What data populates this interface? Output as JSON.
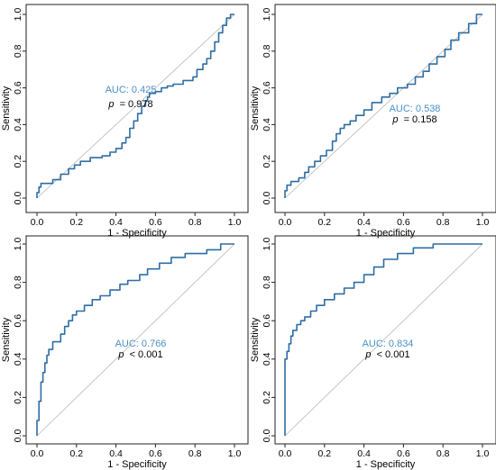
{
  "colors": {
    "roc": "#2e6da4",
    "auc": "#4a90c8",
    "diagonal": "#b8b8b8",
    "frame": "#222222"
  },
  "chart_data": [
    {
      "type": "line",
      "xlabel": "1 - Specificity",
      "ylabel": "Sensitivity",
      "xlim": [
        0,
        1
      ],
      "ylim": [
        0,
        1
      ],
      "xticks": [
        "0.0",
        "0.2",
        "0.4",
        "0.6",
        "0.8",
        "1.0"
      ],
      "yticks": [
        "0.0",
        "0.2",
        "0.4",
        "0.6",
        "0.8",
        "1.0"
      ],
      "auc_label": "AUC: 0.425",
      "p_label": "p",
      "p_value": "= 0.978",
      "annotation_position": "center",
      "x": [
        0,
        0,
        0.01,
        0.01,
        0.02,
        0.02,
        0.03,
        0.03,
        0.08,
        0.08,
        0.12,
        0.12,
        0.16,
        0.16,
        0.19,
        0.19,
        0.22,
        0.22,
        0.25,
        0.25,
        0.27,
        0.27,
        0.33,
        0.33,
        0.37,
        0.37,
        0.4,
        0.4,
        0.43,
        0.43,
        0.45,
        0.45,
        0.47,
        0.47,
        0.49,
        0.49,
        0.51,
        0.51,
        0.53,
        0.53,
        0.55,
        0.55,
        0.56,
        0.56,
        0.57,
        0.57,
        0.6,
        0.6,
        0.63,
        0.63,
        0.66,
        0.66,
        0.69,
        0.69,
        0.74,
        0.74,
        0.79,
        0.79,
        0.81,
        0.81,
        0.84,
        0.84,
        0.86,
        0.86,
        0.88,
        0.88,
        0.9,
        0.9,
        0.92,
        0.92,
        0.94,
        0.94,
        0.96,
        0.96,
        0.98,
        0.98,
        1.0
      ],
      "y": [
        0,
        0.03,
        0.03,
        0.06,
        0.06,
        0.08,
        0.08,
        0.08,
        0.08,
        0.1,
        0.1,
        0.13,
        0.13,
        0.16,
        0.16,
        0.18,
        0.18,
        0.2,
        0.2,
        0.2,
        0.2,
        0.22,
        0.22,
        0.23,
        0.23,
        0.25,
        0.25,
        0.27,
        0.27,
        0.3,
        0.3,
        0.33,
        0.33,
        0.38,
        0.38,
        0.42,
        0.42,
        0.46,
        0.46,
        0.5,
        0.5,
        0.53,
        0.53,
        0.55,
        0.55,
        0.57,
        0.57,
        0.58,
        0.58,
        0.6,
        0.6,
        0.61,
        0.61,
        0.62,
        0.62,
        0.64,
        0.64,
        0.66,
        0.66,
        0.7,
        0.7,
        0.73,
        0.73,
        0.76,
        0.76,
        0.8,
        0.8,
        0.85,
        0.85,
        0.9,
        0.9,
        0.94,
        0.94,
        0.98,
        0.98,
        1.0,
        1.0
      ]
    },
    {
      "type": "line",
      "xlabel": "1 - Specificity",
      "ylabel": "Sensitivity",
      "xlim": [
        0,
        1
      ],
      "ylim": [
        0,
        1
      ],
      "xticks": [
        "0.0",
        "0.2",
        "0.4",
        "0.6",
        "0.8",
        "1.0"
      ],
      "yticks": [
        "0.0",
        "0.2",
        "0.4",
        "0.6",
        "0.8",
        "1.0"
      ],
      "auc_label": "AUC: 0.538",
      "p_label": "p",
      "p_value": "= 0.158",
      "annotation_position": "center-right",
      "x": [
        0,
        0,
        0.01,
        0.01,
        0.03,
        0.03,
        0.07,
        0.07,
        0.1,
        0.1,
        0.12,
        0.12,
        0.15,
        0.15,
        0.18,
        0.18,
        0.21,
        0.21,
        0.24,
        0.24,
        0.26,
        0.26,
        0.28,
        0.28,
        0.3,
        0.3,
        0.33,
        0.33,
        0.36,
        0.36,
        0.4,
        0.4,
        0.44,
        0.44,
        0.49,
        0.49,
        0.53,
        0.53,
        0.57,
        0.57,
        0.62,
        0.62,
        0.66,
        0.66,
        0.7,
        0.7,
        0.73,
        0.73,
        0.77,
        0.77,
        0.81,
        0.81,
        0.84,
        0.84,
        0.88,
        0.88,
        0.93,
        0.93,
        0.97,
        0.97,
        1.0
      ],
      "y": [
        0,
        0.04,
        0.04,
        0.07,
        0.07,
        0.09,
        0.09,
        0.11,
        0.11,
        0.14,
        0.14,
        0.17,
        0.17,
        0.2,
        0.2,
        0.23,
        0.23,
        0.26,
        0.26,
        0.31,
        0.31,
        0.35,
        0.35,
        0.38,
        0.38,
        0.4,
        0.4,
        0.42,
        0.42,
        0.45,
        0.45,
        0.48,
        0.48,
        0.52,
        0.52,
        0.55,
        0.55,
        0.57,
        0.57,
        0.6,
        0.6,
        0.62,
        0.62,
        0.66,
        0.66,
        0.69,
        0.69,
        0.73,
        0.73,
        0.77,
        0.77,
        0.81,
        0.81,
        0.86,
        0.86,
        0.9,
        0.9,
        0.95,
        0.95,
        1.0,
        1.0
      ]
    },
    {
      "type": "line",
      "xlabel": "1 - Specificity",
      "ylabel": "Sensitivity",
      "xlim": [
        0,
        1
      ],
      "ylim": [
        0,
        1
      ],
      "xticks": [
        "0.0",
        "0.2",
        "0.4",
        "0.6",
        "0.8",
        "1.0"
      ],
      "yticks": [
        "0.0",
        "0.2",
        "0.4",
        "0.6",
        "0.8",
        "1.0"
      ],
      "auc_label": "AUC: 0.766",
      "p_label": "p",
      "p_value": "< 0.001",
      "annotation_position": "center-right",
      "x": [
        0,
        0,
        0.01,
        0.01,
        0.02,
        0.02,
        0.03,
        0.03,
        0.04,
        0.04,
        0.05,
        0.05,
        0.06,
        0.06,
        0.08,
        0.08,
        0.12,
        0.12,
        0.14,
        0.14,
        0.16,
        0.16,
        0.18,
        0.18,
        0.2,
        0.2,
        0.24,
        0.24,
        0.28,
        0.28,
        0.32,
        0.32,
        0.37,
        0.37,
        0.42,
        0.42,
        0.46,
        0.46,
        0.52,
        0.52,
        0.56,
        0.56,
        0.62,
        0.62,
        0.68,
        0.68,
        0.75,
        0.75,
        0.86,
        0.86,
        0.93,
        0.93,
        1.0
      ],
      "y": [
        0,
        0.08,
        0.08,
        0.18,
        0.18,
        0.28,
        0.28,
        0.33,
        0.33,
        0.38,
        0.38,
        0.42,
        0.42,
        0.45,
        0.45,
        0.49,
        0.49,
        0.53,
        0.53,
        0.57,
        0.57,
        0.6,
        0.6,
        0.63,
        0.63,
        0.65,
        0.65,
        0.68,
        0.68,
        0.71,
        0.71,
        0.73,
        0.73,
        0.76,
        0.76,
        0.79,
        0.79,
        0.81,
        0.81,
        0.84,
        0.84,
        0.87,
        0.87,
        0.9,
        0.9,
        0.93,
        0.93,
        0.95,
        0.95,
        0.97,
        0.97,
        1.0,
        1.0
      ]
    },
    {
      "type": "line",
      "xlabel": "1 - Specificity",
      "ylabel": "Sensitivity",
      "xlim": [
        0,
        1
      ],
      "ylim": [
        0,
        1
      ],
      "xticks": [
        "0.0",
        "0.2",
        "0.4",
        "0.6",
        "0.8",
        "1.0"
      ],
      "yticks": [
        "0.0",
        "0.2",
        "0.4",
        "0.6",
        "0.8",
        "1.0"
      ],
      "auc_label": "AUC: 0.834",
      "p_label": "p",
      "p_value": "< 0.001",
      "annotation_position": "center-right",
      "x": [
        0,
        0,
        0.01,
        0.01,
        0.02,
        0.02,
        0.03,
        0.03,
        0.04,
        0.04,
        0.06,
        0.06,
        0.08,
        0.08,
        0.1,
        0.1,
        0.13,
        0.13,
        0.16,
        0.16,
        0.2,
        0.2,
        0.25,
        0.25,
        0.3,
        0.3,
        0.35,
        0.35,
        0.4,
        0.4,
        0.45,
        0.45,
        0.5,
        0.5,
        0.57,
        0.57,
        0.65,
        0.65,
        0.75,
        0.75,
        1.0
      ],
      "y": [
        0,
        0.4,
        0.4,
        0.44,
        0.44,
        0.48,
        0.48,
        0.52,
        0.52,
        0.55,
        0.55,
        0.58,
        0.58,
        0.6,
        0.6,
        0.62,
        0.62,
        0.65,
        0.65,
        0.68,
        0.68,
        0.71,
        0.71,
        0.74,
        0.74,
        0.77,
        0.77,
        0.8,
        0.8,
        0.84,
        0.84,
        0.88,
        0.88,
        0.92,
        0.92,
        0.95,
        0.95,
        0.98,
        0.98,
        1.0,
        1.0
      ]
    }
  ]
}
